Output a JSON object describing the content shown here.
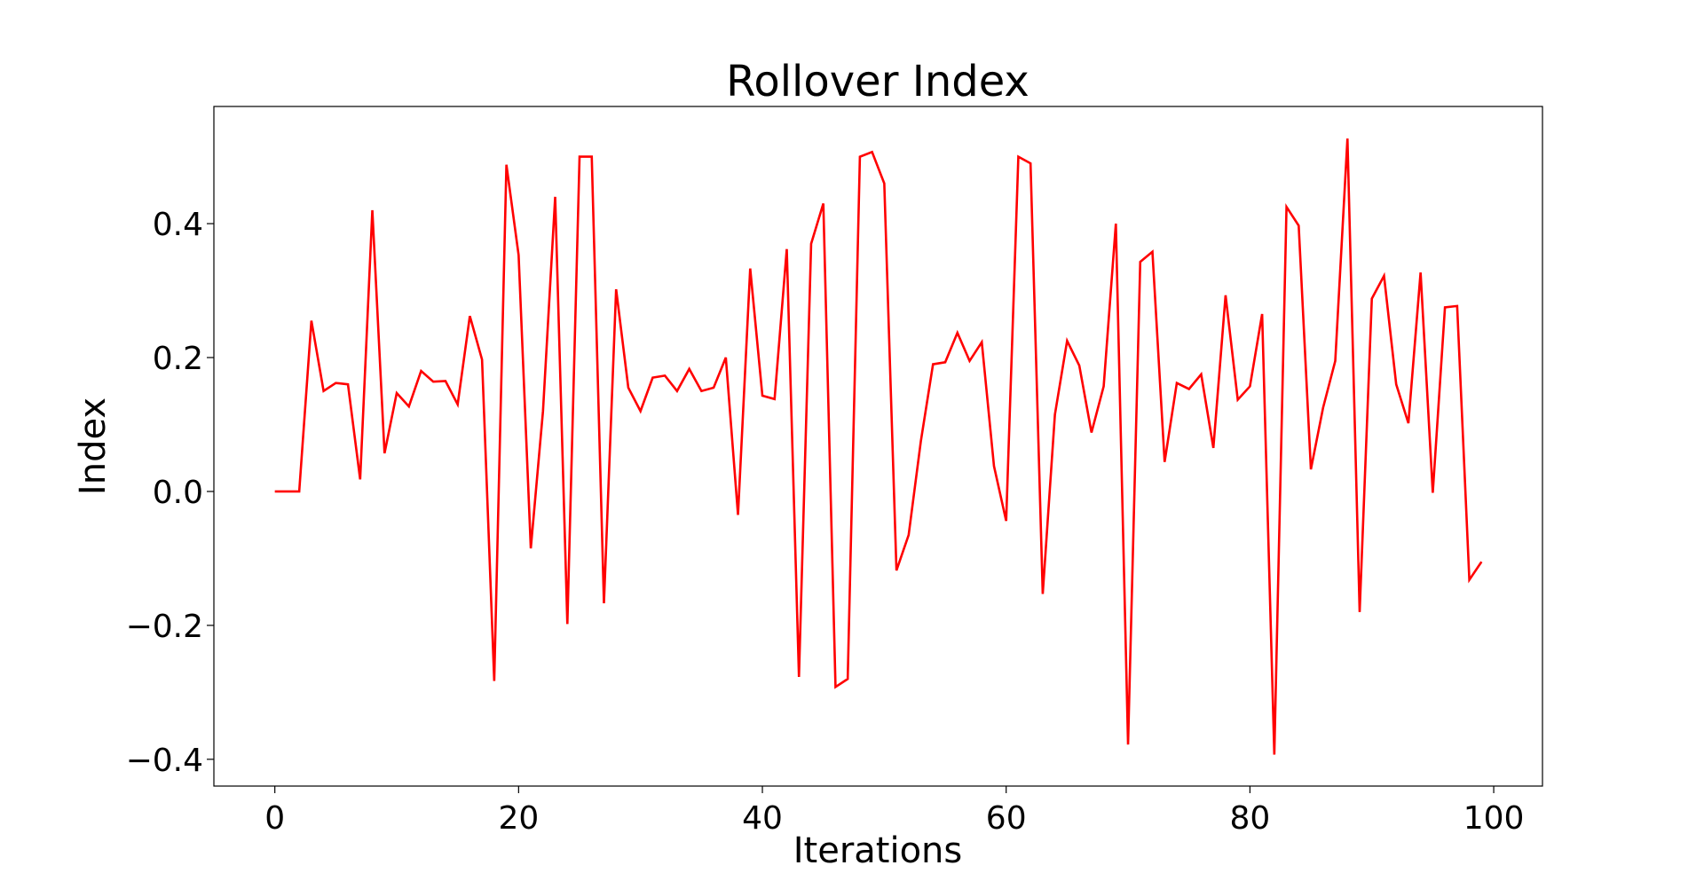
{
  "chart_data": {
    "type": "line",
    "title": "Rollover Index",
    "xlabel": "Iterations",
    "ylabel": "Index",
    "xlim": [
      -5,
      104
    ],
    "ylim": [
      -0.44,
      0.575
    ],
    "grid": false,
    "x_ticks": [
      0,
      20,
      40,
      60,
      80,
      100
    ],
    "x_tick_labels": [
      "0",
      "20",
      "40",
      "60",
      "80",
      "100"
    ],
    "y_ticks": [
      -0.4,
      -0.2,
      0.0,
      0.2,
      0.4
    ],
    "y_tick_labels": [
      "−0.4",
      "−0.2",
      "0.0",
      "0.2",
      "0.4"
    ],
    "series": [
      {
        "color": "#ff0000",
        "x": [
          0,
          1,
          2,
          3,
          4,
          5,
          6,
          7,
          8,
          9,
          10,
          11,
          12,
          13,
          14,
          15,
          16,
          17,
          18,
          19,
          20,
          21,
          22,
          23,
          24,
          25,
          26,
          27,
          28,
          29,
          30,
          31,
          32,
          33,
          34,
          35,
          36,
          37,
          38,
          39,
          40,
          41,
          42,
          43,
          44,
          45,
          46,
          47,
          48,
          49,
          50,
          51,
          52,
          53,
          54,
          55,
          56,
          57,
          58,
          59,
          60,
          61,
          62,
          63,
          64,
          65,
          66,
          67,
          68,
          69,
          70,
          71,
          72,
          73,
          74,
          75,
          76,
          77,
          78,
          79,
          80,
          81,
          82,
          83,
          84,
          85,
          86,
          87,
          88,
          89,
          90,
          91,
          92,
          93,
          94,
          95,
          96,
          97,
          98,
          99
        ],
        "values": [
          0.0,
          0.0,
          0.0,
          0.255,
          0.15,
          0.162,
          0.16,
          0.018,
          0.42,
          0.057,
          0.147,
          0.127,
          0.18,
          0.164,
          0.165,
          0.13,
          0.262,
          0.197,
          -0.283,
          0.488,
          0.353,
          -0.085,
          0.12,
          0.44,
          -0.198,
          0.5,
          0.5,
          -0.167,
          0.302,
          0.155,
          0.12,
          0.17,
          0.173,
          0.15,
          0.183,
          0.15,
          0.155,
          0.2,
          -0.035,
          0.333,
          0.143,
          0.138,
          0.362,
          -0.277,
          0.37,
          0.43,
          -0.292,
          -0.28,
          0.5,
          0.507,
          0.46,
          -0.118,
          -0.065,
          0.075,
          0.19,
          0.193,
          0.237,
          0.195,
          0.223,
          0.038,
          -0.044,
          0.5,
          0.49,
          -0.153,
          0.115,
          0.225,
          0.188,
          0.088,
          0.157,
          0.4,
          -0.378,
          0.343,
          0.358,
          0.044,
          0.162,
          0.153,
          0.175,
          0.065,
          0.293,
          0.137,
          0.157,
          0.265,
          -0.393,
          0.425,
          0.397,
          0.033,
          0.125,
          0.195,
          0.527,
          -0.18,
          0.288,
          0.322,
          0.16,
          0.102,
          0.327,
          -0.002,
          0.275,
          0.277,
          -0.132,
          -0.105
        ]
      }
    ]
  }
}
